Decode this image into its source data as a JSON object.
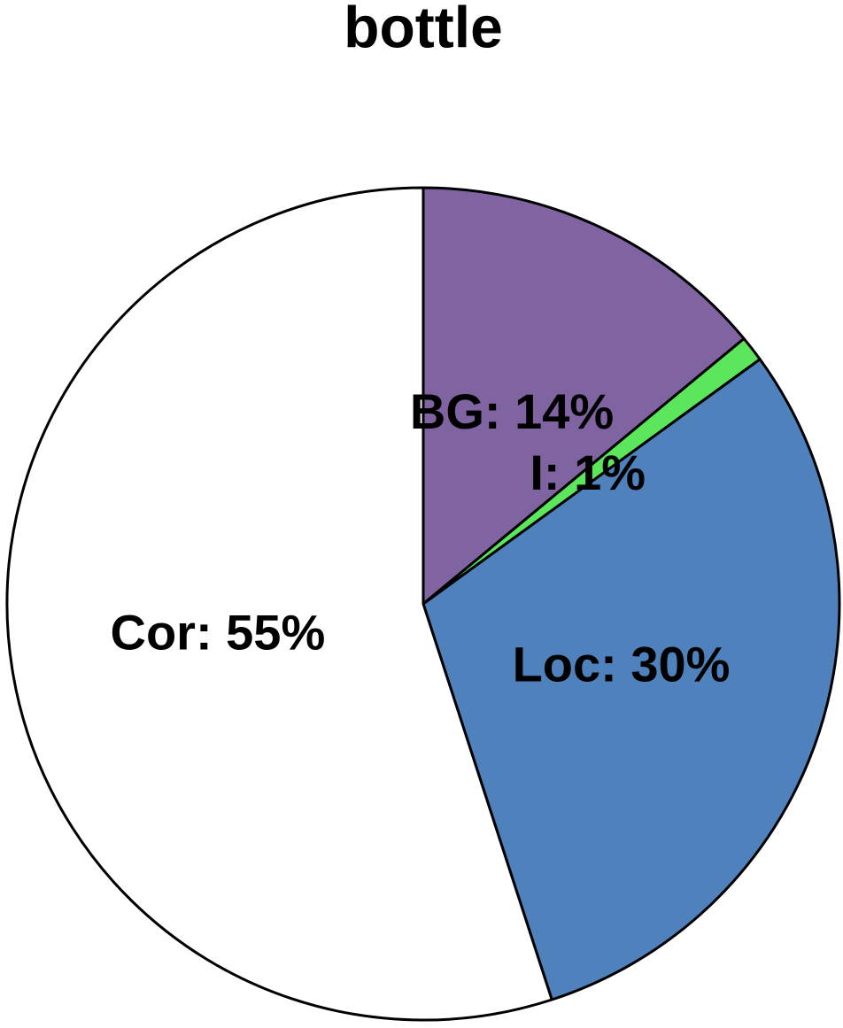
{
  "chart_data": {
    "type": "pie",
    "title": "bottle",
    "values": [
      14,
      1,
      30,
      55
    ],
    "value_labels": [
      "BG: 14%",
      "I: 1%",
      "Loc: 30%",
      "Cor: 55%"
    ],
    "colors": [
      "#8064a2",
      "#5ce65c",
      "#4f81bd",
      "#ffffff"
    ]
  }
}
